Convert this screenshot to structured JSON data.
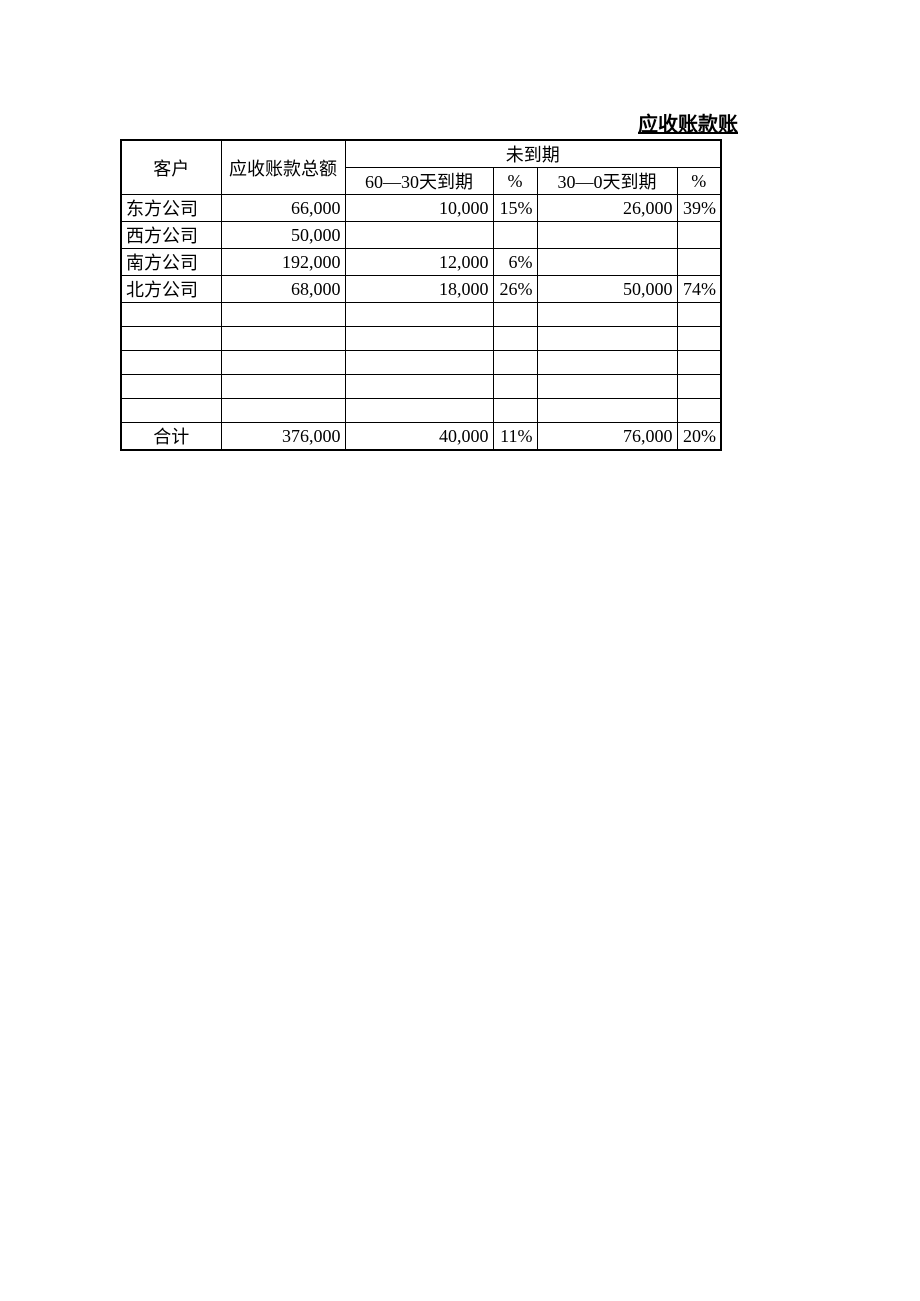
{
  "title": "应收账款账",
  "header": {
    "customer": "客户",
    "total": "应收账款总额",
    "group": "未到期",
    "period1": "60—30天到期",
    "pct": "%",
    "period2": "30—0天到期"
  },
  "rows": [
    {
      "cust": "东方公司",
      "total": "66,000",
      "a1": "10,000",
      "p1": "15%",
      "a2": "26,000",
      "p2": "39%"
    },
    {
      "cust": "西方公司",
      "total": "50,000",
      "a1": "",
      "p1": "",
      "a2": "",
      "p2": ""
    },
    {
      "cust": "南方公司",
      "total": "192,000",
      "a1": "12,000",
      "p1": "6%",
      "a2": "",
      "p2": ""
    },
    {
      "cust": "北方公司",
      "total": "68,000",
      "a1": "18,000",
      "p1": "26%",
      "a2": "50,000",
      "p2": "74%"
    },
    {
      "cust": "",
      "total": "",
      "a1": "",
      "p1": "",
      "a2": "",
      "p2": ""
    },
    {
      "cust": "",
      "total": "",
      "a1": "",
      "p1": "",
      "a2": "",
      "p2": ""
    },
    {
      "cust": "",
      "total": "",
      "a1": "",
      "p1": "",
      "a2": "",
      "p2": ""
    },
    {
      "cust": "",
      "total": "",
      "a1": "",
      "p1": "",
      "a2": "",
      "p2": ""
    },
    {
      "cust": "",
      "total": "",
      "a1": "",
      "p1": "",
      "a2": "",
      "p2": ""
    }
  ],
  "totalRow": {
    "cust": "合计",
    "total": "376,000",
    "a1": "40,000",
    "p1": "11%",
    "a2": "76,000",
    "p2": "20%"
  },
  "style": {
    "text_color": "#000000",
    "bg_color": "#ffffff",
    "border_color": "#000000",
    "font_family": "SimSun",
    "title_underline": true
  }
}
